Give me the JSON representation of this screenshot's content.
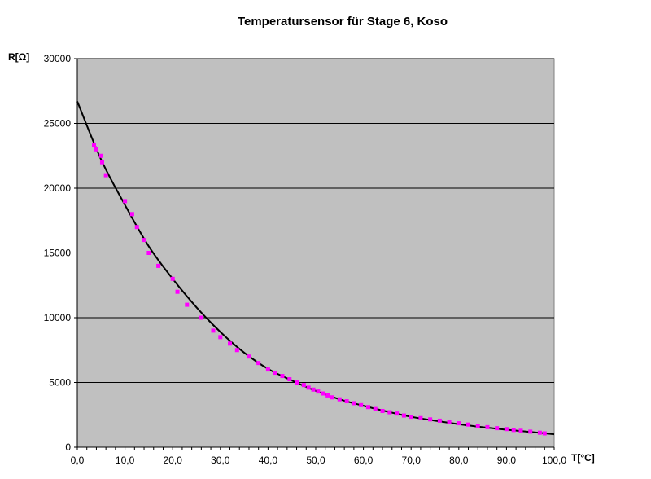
{
  "chart_data": {
    "type": "scatter",
    "title": "Temperatursensor für Stage 6, Koso",
    "xlabel": "T[°C]",
    "ylabel": "R[Ω]",
    "xlim": [
      0,
      100
    ],
    "ylim": [
      0,
      30000
    ],
    "x_ticks": [
      0,
      10,
      20,
      30,
      40,
      50,
      60,
      70,
      80,
      90,
      100
    ],
    "x_tick_labels": [
      "0,0",
      "10,0",
      "20,0",
      "30,0",
      "40,0",
      "50,0",
      "60,0",
      "70,0",
      "80,0",
      "90,0",
      "100,0"
    ],
    "y_ticks": [
      0,
      5000,
      10000,
      15000,
      20000,
      25000,
      30000
    ],
    "y_tick_labels": [
      "0",
      "5000",
      "10000",
      "15000",
      "20000",
      "25000",
      "30000"
    ],
    "grid": "horizontal",
    "legend": "none",
    "colors": {
      "plot_background": "#c0c0c0",
      "gridline": "#000000",
      "marker": "#ff00ff",
      "trendline": "#000000"
    },
    "series": [
      {
        "kind": "markers",
        "points": [
          [
            3.5,
            23300
          ],
          [
            4.0,
            23000
          ],
          [
            5.0,
            22500
          ],
          [
            5.2,
            22000
          ],
          [
            6.0,
            21000
          ],
          [
            10.0,
            19000
          ],
          [
            11.5,
            18000
          ],
          [
            12.5,
            17000
          ],
          [
            14.0,
            16000
          ],
          [
            15.0,
            15000
          ],
          [
            17.0,
            14000
          ],
          [
            20.0,
            13000
          ],
          [
            21.0,
            12000
          ],
          [
            23.0,
            11000
          ],
          [
            26.0,
            10000
          ],
          [
            28.5,
            9000
          ],
          [
            30.0,
            8500
          ],
          [
            32.0,
            8000
          ],
          [
            33.5,
            7500
          ],
          [
            36.0,
            7000
          ],
          [
            38.0,
            6500
          ],
          [
            40.0,
            6000
          ],
          [
            41.5,
            5750
          ],
          [
            43.0,
            5500
          ],
          [
            44.5,
            5250
          ],
          [
            46.0,
            5000
          ],
          [
            47.5,
            4800
          ],
          [
            48.5,
            4600
          ],
          [
            49.5,
            4450
          ],
          [
            50.5,
            4300
          ],
          [
            51.5,
            4150
          ],
          [
            52.5,
            4000
          ],
          [
            53.5,
            3850
          ],
          [
            55.0,
            3700
          ],
          [
            56.5,
            3550
          ],
          [
            58.0,
            3400
          ],
          [
            59.5,
            3250
          ],
          [
            61.0,
            3100
          ],
          [
            62.5,
            2950
          ],
          [
            64.0,
            2800
          ],
          [
            65.5,
            2700
          ],
          [
            67.0,
            2600
          ],
          [
            68.5,
            2450
          ],
          [
            70.0,
            2350
          ],
          [
            72.0,
            2250
          ],
          [
            74.0,
            2150
          ],
          [
            76.0,
            2050
          ],
          [
            78.0,
            1950
          ],
          [
            80.0,
            1850
          ],
          [
            82.0,
            1750
          ],
          [
            84.0,
            1650
          ],
          [
            86.0,
            1550
          ],
          [
            88.0,
            1470
          ],
          [
            90.0,
            1400
          ],
          [
            91.5,
            1330
          ],
          [
            93.0,
            1270
          ],
          [
            95.0,
            1200
          ],
          [
            97.0,
            1120
          ],
          [
            98.0,
            1070
          ]
        ]
      },
      {
        "kind": "trendline",
        "points": [
          [
            0,
            26700
          ],
          [
            5,
            22200
          ],
          [
            10,
            18700
          ],
          [
            15,
            15500
          ],
          [
            20,
            13000
          ],
          [
            25,
            10800
          ],
          [
            30,
            8900
          ],
          [
            35,
            7300
          ],
          [
            40,
            6050
          ],
          [
            45,
            5150
          ],
          [
            50,
            4350
          ],
          [
            55,
            3700
          ],
          [
            60,
            3200
          ],
          [
            65,
            2750
          ],
          [
            70,
            2350
          ],
          [
            75,
            2050
          ],
          [
            80,
            1780
          ],
          [
            85,
            1550
          ],
          [
            90,
            1350
          ],
          [
            95,
            1180
          ],
          [
            100,
            1000
          ]
        ]
      }
    ]
  }
}
